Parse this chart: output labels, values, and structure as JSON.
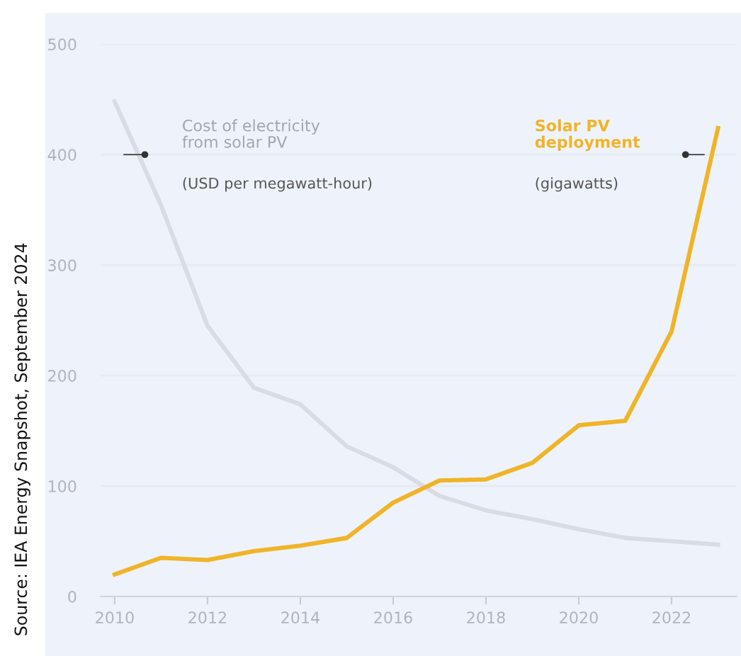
{
  "chart_data": {
    "type": "line",
    "x": [
      2010,
      2011,
      2012,
      2013,
      2014,
      2015,
      2016,
      2017,
      2018,
      2019,
      2020,
      2021,
      2022,
      2023
    ],
    "series": [
      {
        "name": "Cost of electricity\nfrom solar PV",
        "color": "#d9dce3",
        "values": [
          448,
          354,
          245,
          189,
          174,
          136,
          117,
          91,
          78,
          70,
          61,
          53,
          50,
          47
        ]
      },
      {
        "name": "Solar PV\ndeployment",
        "color": "#f0b428",
        "values": [
          20,
          35,
          33,
          41,
          46,
          53,
          85,
          105,
          106,
          121,
          155,
          159,
          240,
          424
        ]
      }
    ],
    "annotations": [
      "(USD per megawatt-hour)",
      "(gigawatts)",
      "Source: IEA Energy Snapshot, September 2024"
    ],
    "xlim": [
      2009.7,
      2023.4
    ],
    "ylim": [
      0,
      500
    ],
    "xticks": [
      2010,
      2012,
      2014,
      2016,
      2018,
      2020,
      2022
    ],
    "yticks": [
      0,
      100,
      200,
      300,
      400,
      500
    ],
    "grid": "y",
    "legend": false,
    "marker": "none",
    "line_style": "solid"
  }
}
